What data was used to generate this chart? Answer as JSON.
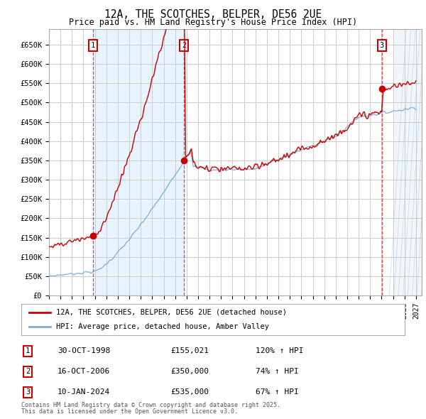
{
  "title": "12A, THE SCOTCHES, BELPER, DE56 2UE",
  "subtitle": "Price paid vs. HM Land Registry's House Price Index (HPI)",
  "yticks": [
    0,
    50000,
    100000,
    150000,
    200000,
    250000,
    300000,
    350000,
    400000,
    450000,
    500000,
    550000,
    600000,
    650000
  ],
  "ytick_labels": [
    "£0",
    "£50K",
    "£100K",
    "£150K",
    "£200K",
    "£250K",
    "£300K",
    "£350K",
    "£400K",
    "£450K",
    "£500K",
    "£550K",
    "£600K",
    "£650K"
  ],
  "sale1_year": 1998.83,
  "sale1_price": 155021,
  "sale2_year": 2006.79,
  "sale2_price": 350000,
  "sale3_year": 2024.03,
  "sale3_price": 535000,
  "legend_line1": "12A, THE SCOTCHES, BELPER, DE56 2UE (detached house)",
  "legend_line2": "HPI: Average price, detached house, Amber Valley",
  "footer1": "Contains HM Land Registry data © Crown copyright and database right 2025.",
  "footer2": "This data is licensed under the Open Government Licence v3.0.",
  "table_rows": [
    [
      "1",
      "30-OCT-1998",
      "£155,021",
      "120% ↑ HPI"
    ],
    [
      "2",
      "16-OCT-2006",
      "£350,000",
      "74% ↑ HPI"
    ],
    [
      "3",
      "10-JAN-2024",
      "£535,000",
      "67% ↑ HPI"
    ]
  ],
  "red_color": "#cc0000",
  "blue_color": "#7aaed6",
  "shade_color": "#ddeeff",
  "hatch_color": "#c8d8e8",
  "background_color": "#ffffff",
  "grid_color": "#cccccc"
}
